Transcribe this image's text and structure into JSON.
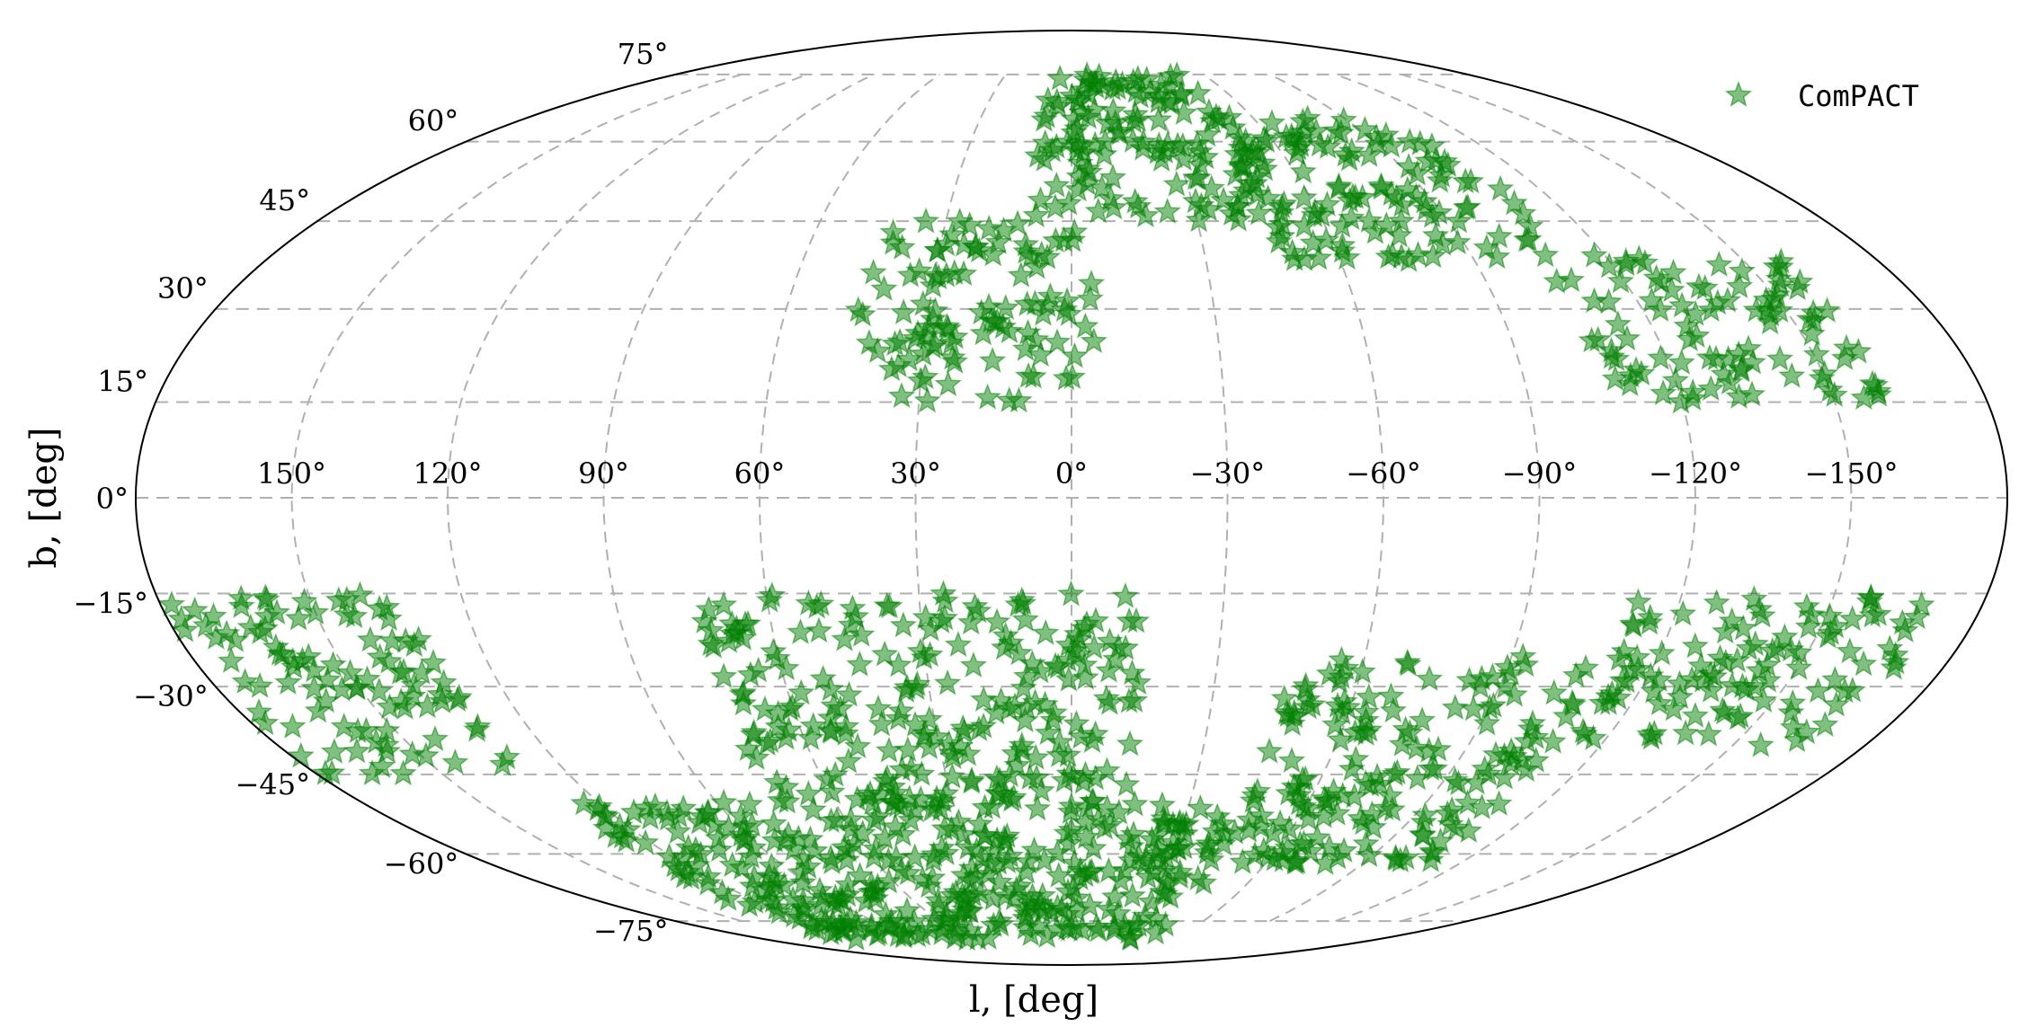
{
  "chart_data": {
    "type": "scatter",
    "projection": "mollweide",
    "xlabel": "l, [deg]",
    "ylabel": "b, [deg]",
    "grid": true,
    "legend_placement": "top-right",
    "longitude_ticks": [
      150,
      120,
      90,
      60,
      30,
      0,
      -30,
      -60,
      -90,
      -120,
      -150
    ],
    "longitude_tick_labels": [
      "150°",
      "120°",
      "90°",
      "60°",
      "30°",
      "0°",
      "−30°",
      "−60°",
      "−90°",
      "−120°",
      "−150°"
    ],
    "latitude_ticks": [
      75,
      60,
      45,
      30,
      15,
      0,
      -15,
      -30,
      -45,
      -60,
      -75
    ],
    "latitude_tick_labels": [
      "75°",
      "60°",
      "45°",
      "30°",
      "15°",
      "0°",
      "−15°",
      "−30°",
      "−45°",
      "−60°",
      "−75°"
    ],
    "series": [
      {
        "name": "ComPACT",
        "marker": "star",
        "color": "#008000",
        "alpha": 0.5,
        "regions_lb_deg": [
          {
            "l_range": [
              -5,
              45
            ],
            "b_range": [
              15,
              45
            ]
          },
          {
            "l_range": [
              -50,
              10
            ],
            "b_range": [
              45,
              75
            ]
          },
          {
            "l_range": [
              -110,
              -45
            ],
            "b_range": [
              38,
              65
            ]
          },
          {
            "l_range": [
              -160,
              -105
            ],
            "b_range": [
              15,
              40
            ]
          },
          {
            "l_range": [
              -170,
              -110
            ],
            "b_range": [
              -40,
              -15
            ]
          },
          {
            "l_range": [
              -110,
              -45
            ],
            "b_range": [
              -62,
              -25
            ]
          },
          {
            "l_range": [
              -15,
              75
            ],
            "b_range": [
              -50,
              -15
            ]
          },
          {
            "l_range": [
              -45,
              130
            ],
            "b_range": [
              -80,
              -50
            ]
          },
          {
            "l_range": [
              130,
              180
            ],
            "b_range": [
              -45,
              -15
            ]
          }
        ]
      }
    ]
  }
}
